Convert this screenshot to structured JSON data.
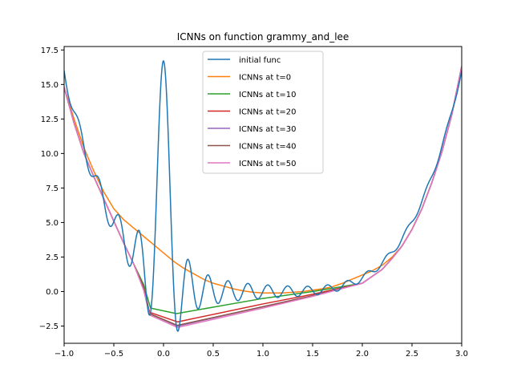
{
  "chart_data": {
    "type": "line",
    "title": "ICNNs on function grammy_and_lee",
    "xlabel": "",
    "ylabel": "",
    "xlim": [
      -1.0,
      3.0
    ],
    "ylim": [
      -3.75,
      17.75
    ],
    "x_ticks": [
      -1.0,
      -0.5,
      0.0,
      0.5,
      1.0,
      1.5,
      2.0,
      2.5,
      3.0
    ],
    "x_tick_labels": [
      "−1.0",
      "−0.5",
      "0.0",
      "0.5",
      "1.0",
      "1.5",
      "2.0",
      "2.5",
      "3.0"
    ],
    "y_ticks": [
      -2.5,
      0.0,
      2.5,
      5.0,
      7.5,
      10.0,
      12.5,
      15.0,
      17.5
    ],
    "y_tick_labels": [
      "−2.5",
      "0.0",
      "2.5",
      "5.0",
      "7.5",
      "10.0",
      "12.5",
      "15.0",
      "17.5"
    ],
    "grid": false,
    "legend_position": "upper center",
    "series": [
      {
        "name": "initial func",
        "color": "#1f77b4",
        "kind": "function",
        "formula": "gramacy_lee"
      },
      {
        "name": "ICNNs at t=0",
        "color": "#ff7f0e",
        "kind": "points",
        "points": [
          [
            -1.0,
            14.8
          ],
          [
            -0.9,
            12.5
          ],
          [
            -0.8,
            10.4
          ],
          [
            -0.7,
            8.7
          ],
          [
            -0.6,
            7.2
          ],
          [
            -0.5,
            6.0
          ],
          [
            -0.4,
            5.2
          ],
          [
            -0.3,
            4.6
          ],
          [
            -0.2,
            4.0
          ],
          [
            -0.1,
            3.4
          ],
          [
            0.0,
            2.8
          ],
          [
            0.1,
            2.2
          ],
          [
            0.2,
            1.7
          ],
          [
            0.3,
            1.3
          ],
          [
            0.4,
            0.9
          ],
          [
            0.5,
            0.6
          ],
          [
            0.6,
            0.4
          ],
          [
            0.7,
            0.2
          ],
          [
            0.8,
            0.05
          ],
          [
            0.9,
            -0.05
          ],
          [
            1.0,
            -0.1
          ],
          [
            1.2,
            -0.1
          ],
          [
            1.4,
            0.0
          ],
          [
            1.5,
            0.1
          ],
          [
            1.6,
            0.2
          ],
          [
            1.7,
            0.35
          ],
          [
            1.8,
            0.6
          ],
          [
            1.9,
            0.9
          ],
          [
            2.0,
            1.2
          ],
          [
            2.1,
            1.5
          ],
          [
            2.2,
            1.9
          ],
          [
            2.3,
            2.5
          ],
          [
            2.4,
            3.3
          ],
          [
            2.5,
            4.5
          ],
          [
            2.6,
            6.0
          ],
          [
            2.7,
            7.9
          ],
          [
            2.8,
            10.1
          ],
          [
            2.9,
            12.8
          ],
          [
            3.0,
            16.3
          ]
        ]
      },
      {
        "name": "ICNNs at t=10",
        "color": "#2ca02c",
        "kind": "points",
        "points": [
          [
            -1.0,
            14.8
          ],
          [
            -0.9,
            12.2
          ],
          [
            -0.8,
            10.0
          ],
          [
            -0.7,
            8.3
          ],
          [
            -0.6,
            6.7
          ],
          [
            -0.5,
            5.1
          ],
          [
            -0.4,
            3.5
          ],
          [
            -0.3,
            2.0
          ],
          [
            -0.2,
            0.5
          ],
          [
            -0.13,
            -1.2
          ],
          [
            0.13,
            -1.6
          ],
          [
            1.0,
            -0.5
          ],
          [
            1.5,
            0.0
          ],
          [
            2.0,
            0.6
          ],
          [
            2.2,
            1.6
          ],
          [
            2.3,
            2.4
          ],
          [
            2.4,
            3.3
          ],
          [
            2.5,
            4.5
          ],
          [
            2.6,
            6.0
          ],
          [
            2.7,
            7.9
          ],
          [
            2.8,
            10.1
          ],
          [
            2.9,
            12.8
          ],
          [
            3.0,
            16.3
          ]
        ]
      },
      {
        "name": "ICNNs at t=20",
        "color": "#d62728",
        "kind": "points",
        "points": [
          [
            -1.0,
            14.8
          ],
          [
            -0.9,
            12.2
          ],
          [
            -0.8,
            10.0
          ],
          [
            -0.7,
            8.3
          ],
          [
            -0.6,
            6.7
          ],
          [
            -0.5,
            5.1
          ],
          [
            -0.4,
            3.5
          ],
          [
            -0.3,
            2.0
          ],
          [
            -0.2,
            0.3
          ],
          [
            -0.14,
            -1.5
          ],
          [
            0.14,
            -2.2
          ],
          [
            1.0,
            -0.9
          ],
          [
            1.5,
            -0.2
          ],
          [
            2.0,
            0.6
          ],
          [
            2.2,
            1.6
          ],
          [
            2.3,
            2.4
          ],
          [
            2.4,
            3.3
          ],
          [
            2.5,
            4.5
          ],
          [
            2.6,
            6.0
          ],
          [
            2.7,
            7.9
          ],
          [
            2.8,
            10.1
          ],
          [
            2.9,
            12.8
          ],
          [
            3.0,
            16.3
          ]
        ]
      },
      {
        "name": "ICNNs at t=30",
        "color": "#9467bd",
        "kind": "points",
        "points": [
          [
            -1.0,
            14.8
          ],
          [
            -0.9,
            12.2
          ],
          [
            -0.8,
            10.0
          ],
          [
            -0.7,
            8.3
          ],
          [
            -0.6,
            6.7
          ],
          [
            -0.5,
            5.1
          ],
          [
            -0.4,
            3.5
          ],
          [
            -0.3,
            2.0
          ],
          [
            -0.2,
            0.2
          ],
          [
            -0.14,
            -1.6
          ],
          [
            0.14,
            -2.5
          ],
          [
            1.0,
            -1.1
          ],
          [
            1.5,
            -0.3
          ],
          [
            2.0,
            0.6
          ],
          [
            2.2,
            1.6
          ],
          [
            2.3,
            2.4
          ],
          [
            2.4,
            3.3
          ],
          [
            2.5,
            4.5
          ],
          [
            2.6,
            6.0
          ],
          [
            2.7,
            7.9
          ],
          [
            2.8,
            10.1
          ],
          [
            2.9,
            12.8
          ],
          [
            3.0,
            16.3
          ]
        ]
      },
      {
        "name": "ICNNs at t=40",
        "color": "#8c564b",
        "kind": "points",
        "points": [
          [
            -1.0,
            14.8
          ],
          [
            -0.9,
            12.2
          ],
          [
            -0.8,
            10.0
          ],
          [
            -0.7,
            8.3
          ],
          [
            -0.6,
            6.7
          ],
          [
            -0.5,
            5.1
          ],
          [
            -0.4,
            3.5
          ],
          [
            -0.3,
            2.0
          ],
          [
            -0.2,
            0.2
          ],
          [
            -0.14,
            -1.6
          ],
          [
            0.14,
            -2.45
          ],
          [
            1.0,
            -1.1
          ],
          [
            1.5,
            -0.3
          ],
          [
            2.0,
            0.6
          ],
          [
            2.2,
            1.6
          ],
          [
            2.3,
            2.4
          ],
          [
            2.4,
            3.3
          ],
          [
            2.5,
            4.5
          ],
          [
            2.6,
            6.0
          ],
          [
            2.7,
            7.9
          ],
          [
            2.8,
            10.1
          ],
          [
            2.9,
            12.8
          ],
          [
            3.0,
            16.3
          ]
        ]
      },
      {
        "name": "ICNNs at t=50",
        "color": "#e377c2",
        "kind": "points",
        "points": [
          [
            -1.0,
            14.8
          ],
          [
            -0.9,
            12.2
          ],
          [
            -0.8,
            10.0
          ],
          [
            -0.7,
            8.3
          ],
          [
            -0.6,
            6.7
          ],
          [
            -0.5,
            5.1
          ],
          [
            -0.4,
            3.5
          ],
          [
            -0.3,
            2.0
          ],
          [
            -0.2,
            0.1
          ],
          [
            -0.14,
            -1.7
          ],
          [
            0.14,
            -2.6
          ],
          [
            1.0,
            -1.2
          ],
          [
            1.5,
            -0.35
          ],
          [
            2.0,
            0.6
          ],
          [
            2.2,
            1.6
          ],
          [
            2.3,
            2.4
          ],
          [
            2.4,
            3.3
          ],
          [
            2.5,
            4.5
          ],
          [
            2.6,
            6.0
          ],
          [
            2.7,
            7.9
          ],
          [
            2.8,
            10.1
          ],
          [
            2.9,
            12.8
          ],
          [
            3.0,
            16.3
          ]
        ]
      }
    ]
  }
}
